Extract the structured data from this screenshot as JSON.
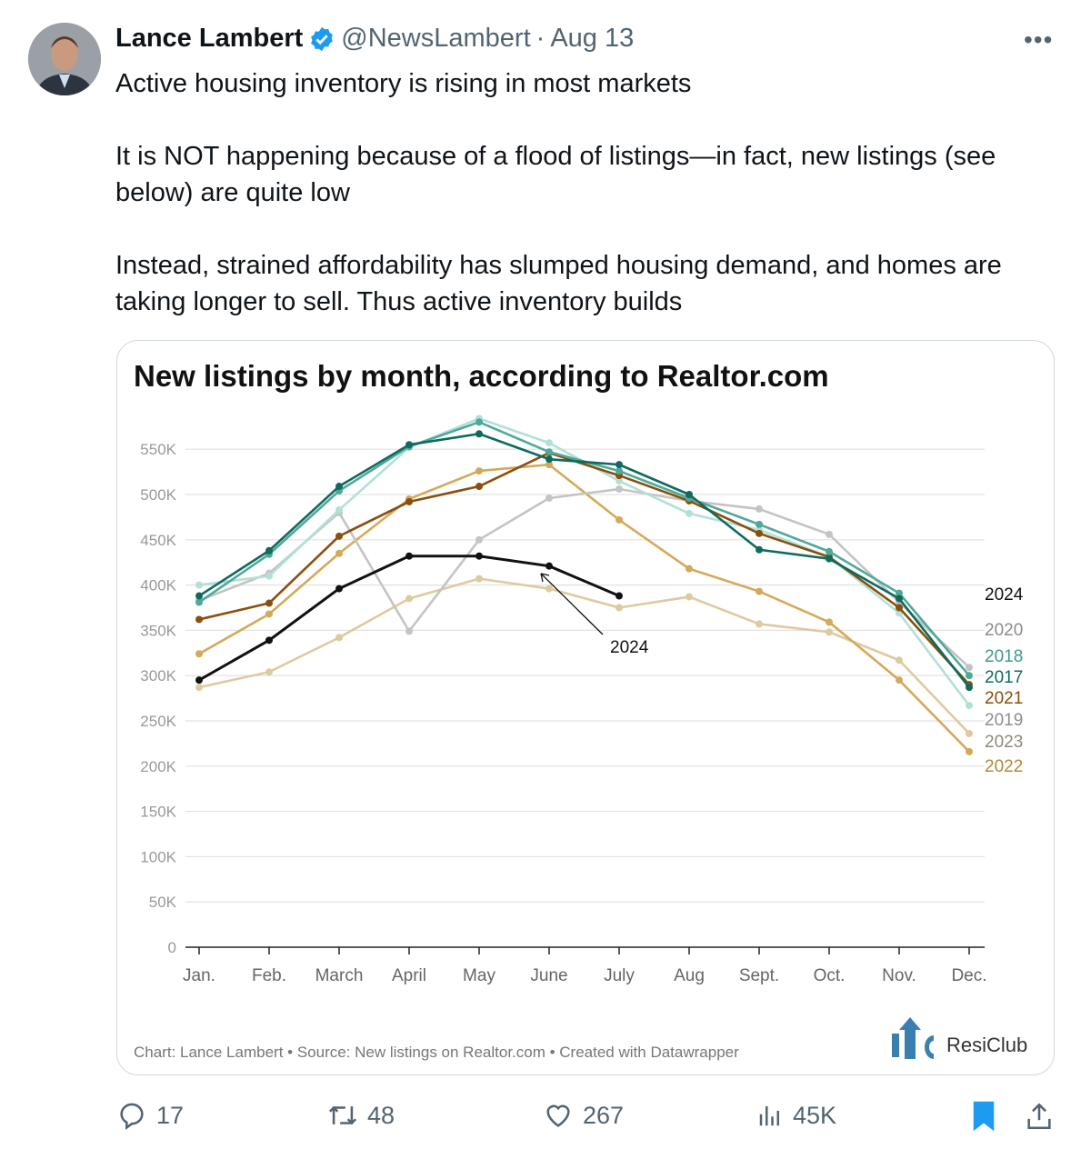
{
  "tweet": {
    "author_name": "Lance Lambert",
    "handle": "@NewsLambert",
    "separator": "·",
    "date": "Aug 13",
    "verified": true,
    "paragraphs": [
      "Active housing inventory is rising in most markets",
      "It is NOT happening because of a flood of listings—in fact, new listings (see below) are quite low",
      "Instead, strained affordability has slumped housing demand, and homes are taking longer to sell. Thus active inventory builds"
    ]
  },
  "actions": {
    "replies": "17",
    "reposts": "48",
    "likes": "267",
    "views": "45K",
    "bookmarked": true
  },
  "colors": {
    "verified": "#1d9bf0",
    "bookmark": "#1d9bf0",
    "muted_text": "#536471"
  },
  "chart_data": {
    "type": "line",
    "title": "New listings by month, according to Realtor.com",
    "categories": [
      "Jan.",
      "Feb.",
      "March",
      "April",
      "May",
      "June",
      "July",
      "Aug",
      "Sept.",
      "Oct.",
      "Nov.",
      "Dec."
    ],
    "y_ticks": [
      "0",
      "50K",
      "100K",
      "150K",
      "200K",
      "250K",
      "300K",
      "350K",
      "400K",
      "450K",
      "500K",
      "550K"
    ],
    "ylim": [
      0,
      550000
    ],
    "grid": true,
    "legend": "right end labels",
    "annotation": "2024",
    "series": [
      {
        "name": "2017",
        "color": "#0e6b5e",
        "label_color": "#0e6b5e",
        "values": [
          388000,
          438000,
          509000,
          555000,
          567000,
          539000,
          533000,
          500000,
          439000,
          429000,
          385000,
          287000
        ]
      },
      {
        "name": "2018",
        "color": "#4fa99a",
        "label_color": "#3f9a8b",
        "values": [
          381000,
          434000,
          504000,
          553000,
          580000,
          547000,
          526000,
          496000,
          467000,
          437000,
          391000,
          300000
        ]
      },
      {
        "name": "2019",
        "color": "#b2e0d7",
        "label_color": "#8a8f92",
        "values": [
          400000,
          410000,
          483000,
          552000,
          584000,
          557000,
          515000,
          479000,
          461000,
          431000,
          369000,
          267000
        ]
      },
      {
        "name": "2020",
        "color": "#c4c4c4",
        "label_color": "#8c8c8c",
        "values": [
          383000,
          413000,
          480000,
          349000,
          450000,
          496000,
          506000,
          493000,
          484000,
          456000,
          381000,
          309000
        ]
      },
      {
        "name": "2021",
        "color": "#8a4f0e",
        "label_color": "#8a4f0e",
        "values": [
          362000,
          380000,
          454000,
          492000,
          509000,
          546000,
          521000,
          493000,
          457000,
          431000,
          375000,
          290000
        ]
      },
      {
        "name": "2022",
        "color": "#d4a95a",
        "label_color": "#b08a3a",
        "values": [
          324000,
          368000,
          435000,
          495000,
          526000,
          533000,
          472000,
          418000,
          393000,
          359000,
          295000,
          216000
        ]
      },
      {
        "name": "2023",
        "color": "#ddcba0",
        "label_color": "#8f8a7a",
        "values": [
          287000,
          304000,
          342000,
          385000,
          407000,
          396000,
          375000,
          387000,
          357000,
          348000,
          317000,
          236000
        ]
      },
      {
        "name": "2024",
        "color": "#111111",
        "label_color": "#111111",
        "values": [
          295000,
          339000,
          396000,
          432000,
          432000,
          421000,
          388000,
          null,
          null,
          null,
          null,
          null
        ]
      }
    ],
    "footer": "Chart: Lance Lambert • Source: New listings on Realtor.com • Created with Datawrapper",
    "logo_text": "ResiClub"
  }
}
